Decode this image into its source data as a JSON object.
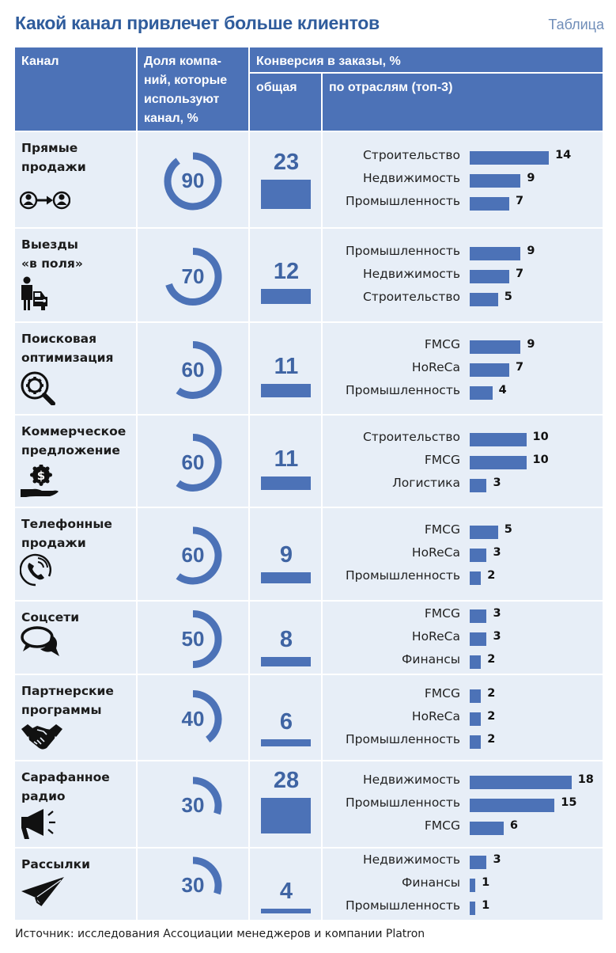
{
  "header": {
    "title": "Какой канал привлечет больше клиентов",
    "kind": "Таблица"
  },
  "columns": {
    "channel": "Канал",
    "share": "Доля компа-\nний, которые\nиспользуют\nканал, %",
    "conversion": "Конверсия в заказы, %",
    "overall": "общая",
    "by_industry": "по отраслям (топ-3)"
  },
  "colors": {
    "accent": "#4c72b7",
    "cell_bg": "#e7eef7",
    "number": "#3f64a3"
  },
  "chart_data": {
    "type": "table",
    "title": "Какой канал привлечет больше клиентов",
    "rows": [
      {
        "channel": "Прямые\nпродажи",
        "icon": "person-to-person-icon",
        "share": 90,
        "overall": 23,
        "industries": [
          {
            "name": "Строительство",
            "value": 14
          },
          {
            "name": "Недвижимость",
            "value": 9
          },
          {
            "name": "Промышленность",
            "value": 7
          }
        ]
      },
      {
        "channel": "Выезды\n«в поля»",
        "icon": "person-with-car-icon",
        "share": 70,
        "overall": 12,
        "industries": [
          {
            "name": "Промышленность",
            "value": 9
          },
          {
            "name": "Недвижимость",
            "value": 7
          },
          {
            "name": "Строительство",
            "value": 5
          }
        ]
      },
      {
        "channel": "Поисковая\nоптимизация",
        "icon": "gear-magnifier-icon",
        "share": 60,
        "overall": 11,
        "industries": [
          {
            "name": "FMCG",
            "value": 9
          },
          {
            "name": "HoReCa",
            "value": 7
          },
          {
            "name": "Промышленность",
            "value": 4
          }
        ]
      },
      {
        "channel": "Коммерческое\nпредложение",
        "icon": "dollar-hand-icon",
        "share": 60,
        "overall": 11,
        "industries": [
          {
            "name": "Строительство",
            "value": 10
          },
          {
            "name": "FMCG",
            "value": 10
          },
          {
            "name": "Логистика",
            "value": 3
          }
        ]
      },
      {
        "channel": "Телефонные\nпродажи",
        "icon": "phone-icon",
        "share": 60,
        "overall": 9,
        "industries": [
          {
            "name": "FMCG",
            "value": 5
          },
          {
            "name": "HoReCa",
            "value": 3
          },
          {
            "name": "Промышленность",
            "value": 2
          }
        ]
      },
      {
        "channel": "Соцсети",
        "icon": "chat-bubbles-icon",
        "share": 50,
        "overall": 8,
        "industries": [
          {
            "name": "FMCG",
            "value": 3
          },
          {
            "name": "HoReCa",
            "value": 3
          },
          {
            "name": "Финансы",
            "value": 2
          }
        ]
      },
      {
        "channel": "Партнерские\nпрограммы",
        "icon": "handshake-icon",
        "share": 40,
        "overall": 6,
        "industries": [
          {
            "name": "FMCG",
            "value": 2
          },
          {
            "name": "HoReCa",
            "value": 2
          },
          {
            "name": "Промышленность",
            "value": 2
          }
        ]
      },
      {
        "channel": "Сарафанное\nрадио",
        "icon": "megaphone-icon",
        "share": 30,
        "overall": 28,
        "industries": [
          {
            "name": "Недвижимость",
            "value": 18
          },
          {
            "name": "Промышленность",
            "value": 15
          },
          {
            "name": "FMCG",
            "value": 6
          }
        ]
      },
      {
        "channel": "Рассылки",
        "icon": "paper-plane-icon",
        "share": 30,
        "overall": 4,
        "industries": [
          {
            "name": "Недвижимость",
            "value": 3
          },
          {
            "name": "Финансы",
            "value": 1
          },
          {
            "name": "Промышленность",
            "value": 1
          }
        ]
      }
    ]
  },
  "footer": {
    "source": "Источник: исследования Ассоциации менеджеров и компании Platron"
  }
}
